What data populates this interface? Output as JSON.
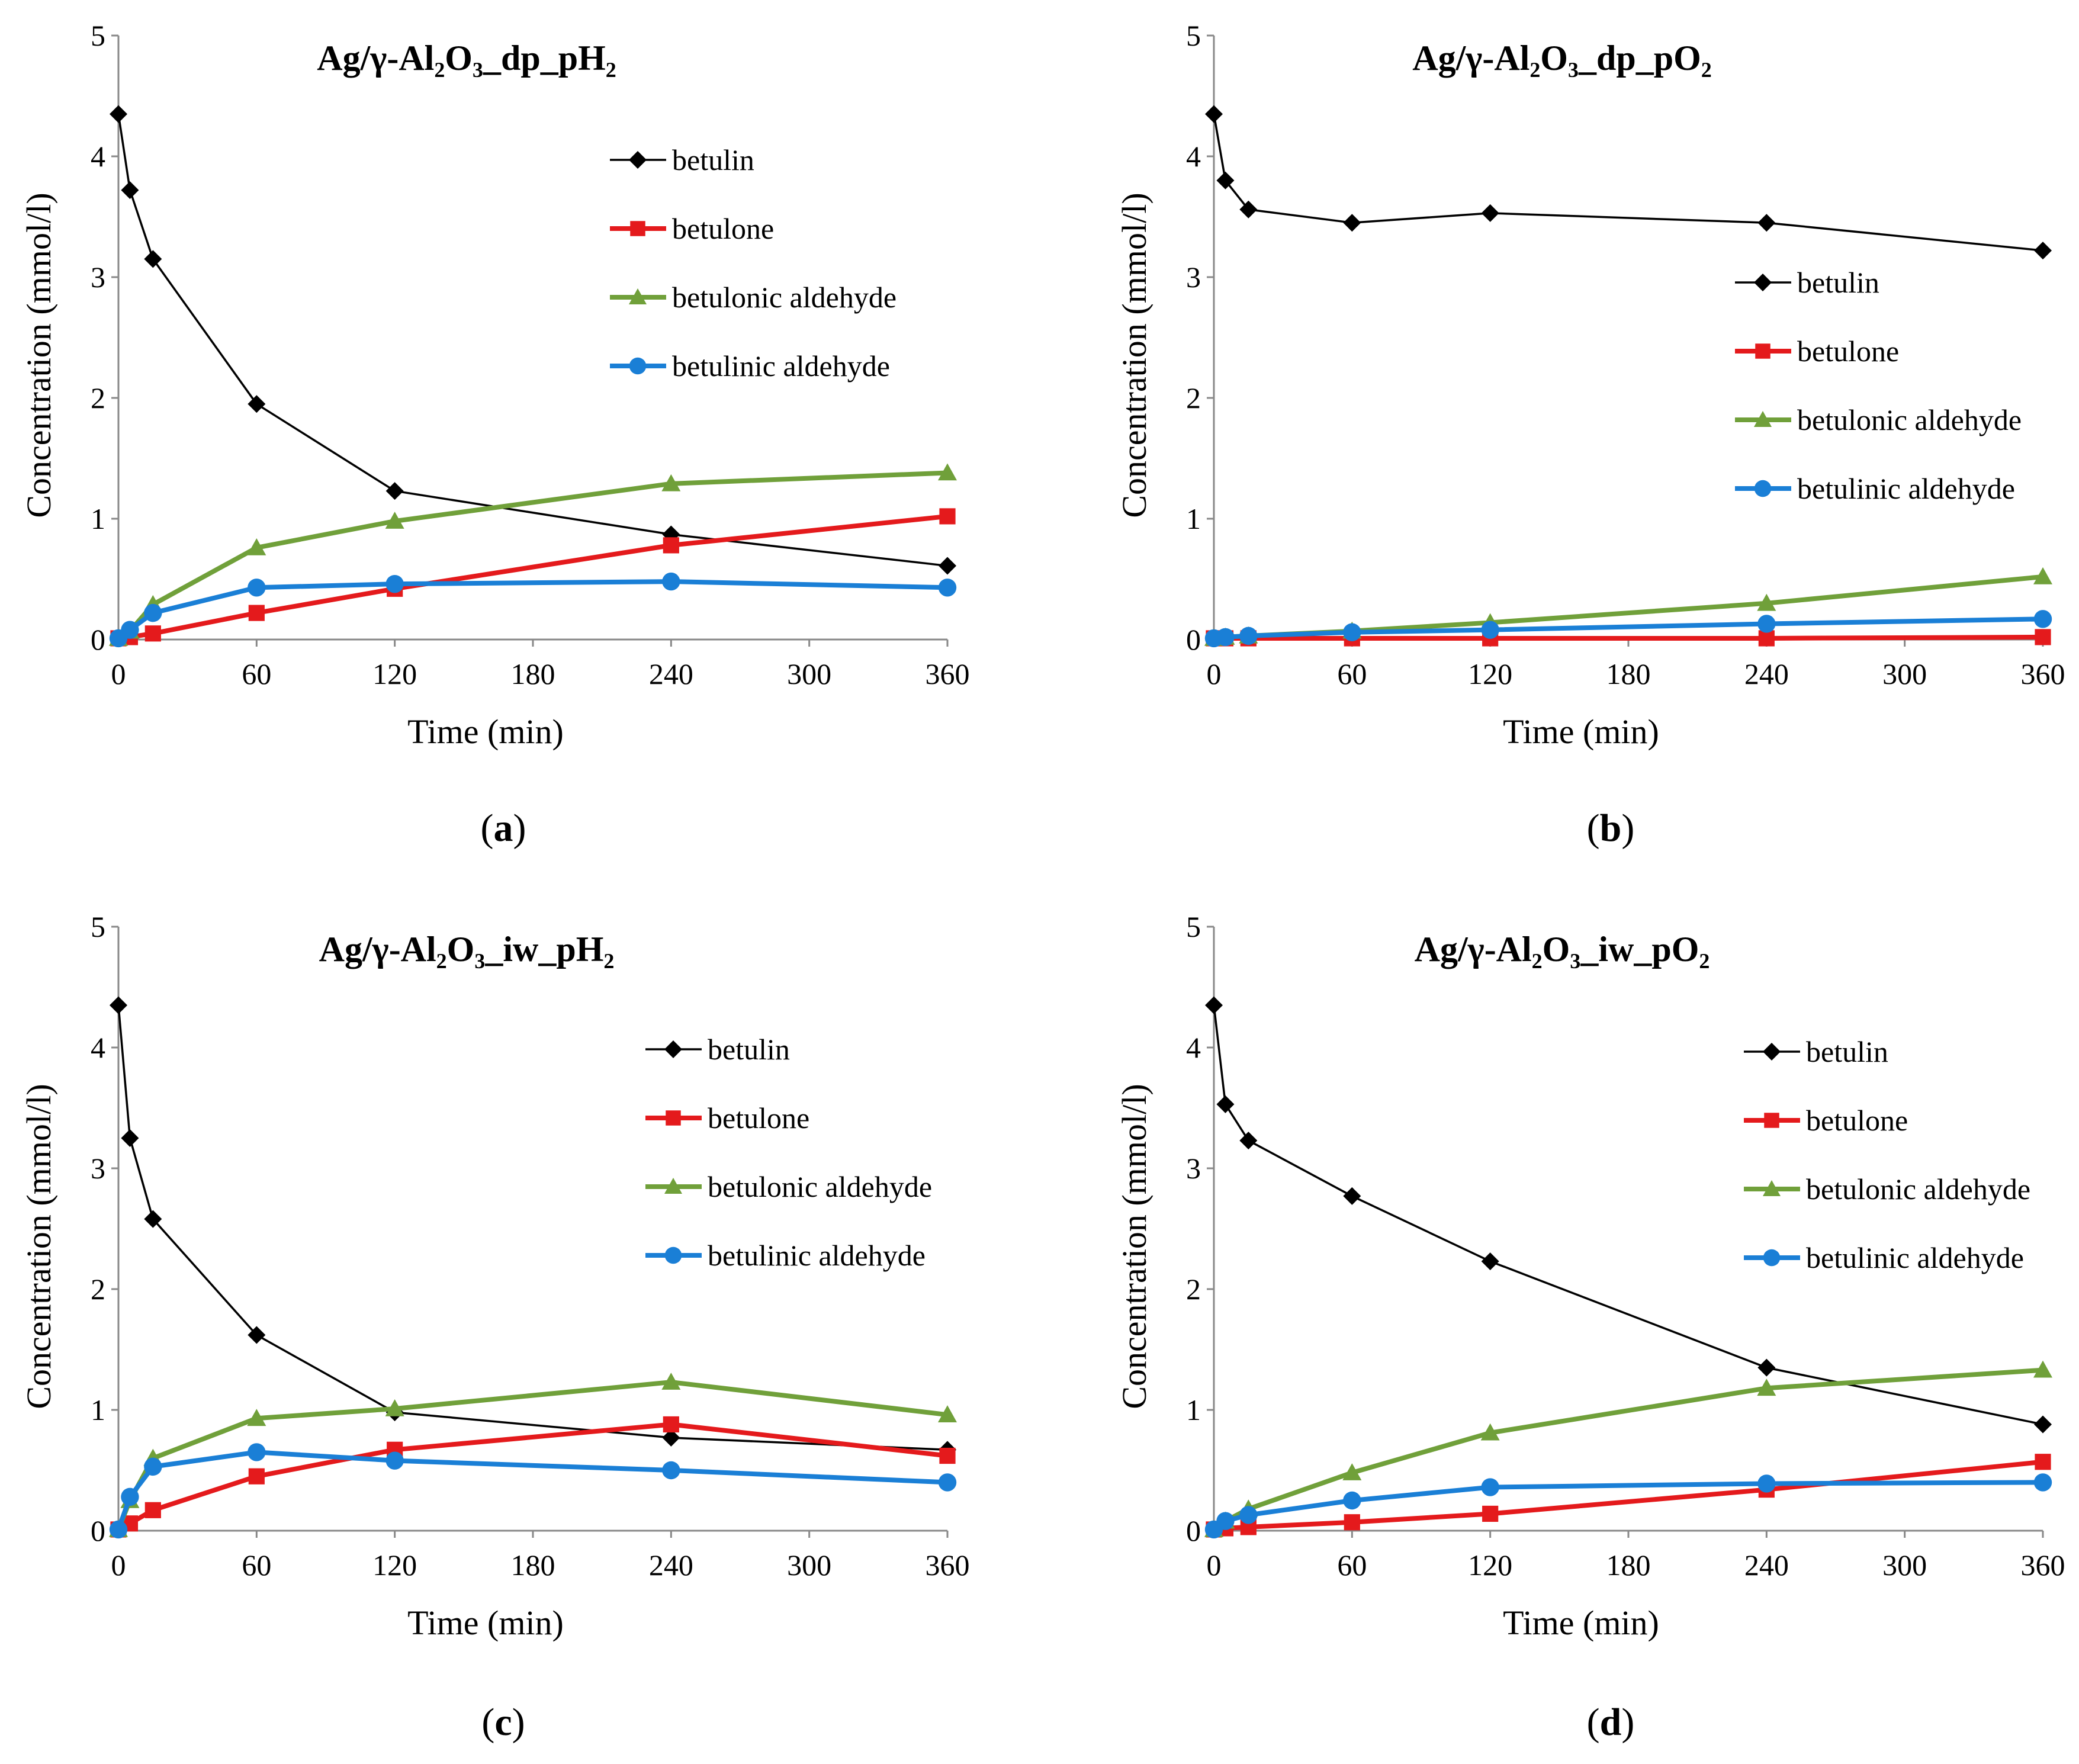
{
  "chart_data": [
    {
      "type": "line",
      "panel_label": "a",
      "title": "Ag/γ-Al₂O₃_dp_pH₂",
      "xlabel": "Time (min)",
      "ylabel": "Concentration (mmol/l)",
      "xlim": [
        0,
        360
      ],
      "ylim": [
        0,
        5
      ],
      "xticks": [
        0,
        60,
        120,
        180,
        240,
        300,
        360
      ],
      "yticks": [
        0,
        1,
        2,
        3,
        4,
        5
      ],
      "grid": false,
      "legend_position": "top-right",
      "series": [
        {
          "name": "betulin",
          "color": "#000000",
          "marker": "diamond",
          "x": [
            0,
            5,
            15,
            60,
            120,
            240,
            360
          ],
          "y": [
            4.35,
            3.72,
            3.15,
            1.95,
            1.23,
            0.87,
            0.61
          ]
        },
        {
          "name": "betulone",
          "color": "#e41a1c",
          "marker": "square",
          "x": [
            0,
            5,
            15,
            60,
            120,
            240,
            360
          ],
          "y": [
            0.01,
            0.02,
            0.05,
            0.22,
            0.42,
            0.78,
            1.02
          ]
        },
        {
          "name": "betulonic aldehyde",
          "color": "#70a03a",
          "marker": "triangle",
          "x": [
            0,
            5,
            15,
            60,
            120,
            240,
            360
          ],
          "y": [
            0.01,
            0.07,
            0.29,
            0.76,
            0.98,
            1.29,
            1.38
          ]
        },
        {
          "name": "betulinic aldehyde",
          "color": "#1a7fd6",
          "marker": "circle",
          "x": [
            0,
            5,
            15,
            60,
            120,
            240,
            360
          ],
          "y": [
            0.01,
            0.08,
            0.22,
            0.43,
            0.46,
            0.48,
            0.43
          ]
        }
      ]
    },
    {
      "type": "line",
      "panel_label": "b",
      "title": "Ag/γ-Al₂O₃_dp_pO₂",
      "xlabel": "Time (min)",
      "ylabel": "Concentration (mmol/l)",
      "xlim": [
        0,
        360
      ],
      "ylim": [
        0,
        5
      ],
      "xticks": [
        0,
        60,
        120,
        180,
        240,
        300,
        360
      ],
      "yticks": [
        0,
        1,
        2,
        3,
        4,
        5
      ],
      "grid": false,
      "legend_position": "right",
      "series": [
        {
          "name": "betulin",
          "color": "#000000",
          "marker": "diamond",
          "x": [
            0,
            5,
            15,
            60,
            120,
            240,
            360
          ],
          "y": [
            4.35,
            3.8,
            3.56,
            3.45,
            3.53,
            3.45,
            3.22
          ]
        },
        {
          "name": "betulone",
          "color": "#e41a1c",
          "marker": "square",
          "x": [
            0,
            5,
            15,
            60,
            120,
            240,
            360
          ],
          "y": [
            0.01,
            0.01,
            0.01,
            0.01,
            0.01,
            0.01,
            0.02
          ]
        },
        {
          "name": "betulonic aldehyde",
          "color": "#70a03a",
          "marker": "triangle",
          "x": [
            0,
            5,
            15,
            60,
            120,
            240,
            360
          ],
          "y": [
            0.01,
            0.02,
            0.03,
            0.07,
            0.14,
            0.3,
            0.52
          ]
        },
        {
          "name": "betulinic aldehyde",
          "color": "#1a7fd6",
          "marker": "circle",
          "x": [
            0,
            5,
            15,
            60,
            120,
            240,
            360
          ],
          "y": [
            0.01,
            0.02,
            0.03,
            0.06,
            0.08,
            0.13,
            0.17
          ]
        }
      ]
    },
    {
      "type": "line",
      "panel_label": "c",
      "title": "Ag/γ-Al₂O₃_iw_pH₂",
      "xlabel": "Time (min)",
      "ylabel": "Concentration (mmol/l)",
      "xlim": [
        0,
        360
      ],
      "ylim": [
        0,
        5
      ],
      "xticks": [
        0,
        60,
        120,
        180,
        240,
        300,
        360
      ],
      "yticks": [
        0,
        1,
        2,
        3,
        4,
        5
      ],
      "grid": false,
      "legend_position": "top-right",
      "series": [
        {
          "name": "betulin",
          "color": "#000000",
          "marker": "diamond",
          "x": [
            0,
            5,
            15,
            60,
            120,
            240,
            360
          ],
          "y": [
            4.35,
            3.25,
            2.58,
            1.62,
            0.98,
            0.77,
            0.67
          ]
        },
        {
          "name": "betulone",
          "color": "#e41a1c",
          "marker": "square",
          "x": [
            0,
            5,
            15,
            60,
            120,
            240,
            360
          ],
          "y": [
            0.01,
            0.06,
            0.17,
            0.45,
            0.67,
            0.88,
            0.62
          ]
        },
        {
          "name": "betulonic aldehyde",
          "color": "#70a03a",
          "marker": "triangle",
          "x": [
            0,
            5,
            15,
            60,
            120,
            240,
            360
          ],
          "y": [
            0.01,
            0.25,
            0.6,
            0.93,
            1.01,
            1.23,
            0.96
          ]
        },
        {
          "name": "betulinic aldehyde",
          "color": "#1a7fd6",
          "marker": "circle",
          "x": [
            0,
            5,
            15,
            60,
            120,
            240,
            360
          ],
          "y": [
            0.01,
            0.28,
            0.53,
            0.65,
            0.58,
            0.5,
            0.4
          ]
        }
      ]
    },
    {
      "type": "line",
      "panel_label": "d",
      "title": "Ag/γ-Al₂O₃_iw_pO₂",
      "xlabel": "Time (min)",
      "ylabel": "Concentration (mmol/l)",
      "xlim": [
        0,
        360
      ],
      "ylim": [
        0,
        5
      ],
      "xticks": [
        0,
        60,
        120,
        180,
        240,
        300,
        360
      ],
      "yticks": [
        0,
        1,
        2,
        3,
        4,
        5
      ],
      "grid": false,
      "legend_position": "top-right",
      "series": [
        {
          "name": "betulin",
          "color": "#000000",
          "marker": "diamond",
          "x": [
            0,
            5,
            15,
            60,
            120,
            240,
            360
          ],
          "y": [
            4.35,
            3.53,
            3.23,
            2.77,
            2.23,
            1.35,
            0.88
          ]
        },
        {
          "name": "betulone",
          "color": "#e41a1c",
          "marker": "square",
          "x": [
            0,
            5,
            15,
            60,
            120,
            240,
            360
          ],
          "y": [
            0.01,
            0.02,
            0.03,
            0.07,
            0.14,
            0.34,
            0.57
          ]
        },
        {
          "name": "betulonic aldehyde",
          "color": "#70a03a",
          "marker": "triangle",
          "x": [
            0,
            5,
            15,
            60,
            120,
            240,
            360
          ],
          "y": [
            0.01,
            0.08,
            0.18,
            0.48,
            0.81,
            1.18,
            1.33
          ]
        },
        {
          "name": "betulinic aldehyde",
          "color": "#1a7fd6",
          "marker": "circle",
          "x": [
            0,
            5,
            15,
            60,
            120,
            240,
            360
          ],
          "y": [
            0.01,
            0.08,
            0.13,
            0.25,
            0.36,
            0.39,
            0.4
          ]
        }
      ]
    }
  ]
}
